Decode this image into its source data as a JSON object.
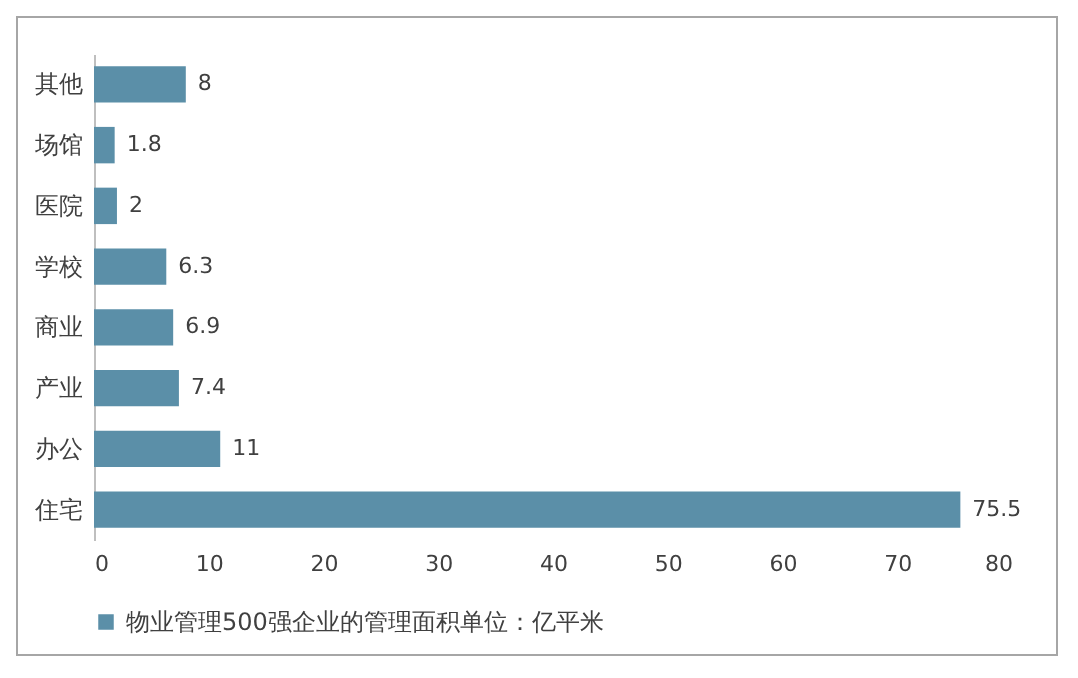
{
  "chart_data": {
    "type": "bar",
    "orientation": "horizontal",
    "categories": [
      "其他",
      "场馆",
      "医院",
      "学校",
      "商业",
      "产业",
      "办公",
      "住宅"
    ],
    "series": [
      {
        "name": "物业管理500强企业的管理面积单位：亿平米",
        "color": "#5b8fa8",
        "values": [
          8,
          1.8,
          2,
          6.3,
          6.9,
          7.4,
          11,
          75.5
        ]
      }
    ],
    "xlim": [
      0,
      80
    ],
    "xticks": [
      0,
      10,
      20,
      30,
      40,
      50,
      60,
      70,
      80
    ],
    "data_labels": true,
    "legend": "bottom",
    "grid": false
  }
}
